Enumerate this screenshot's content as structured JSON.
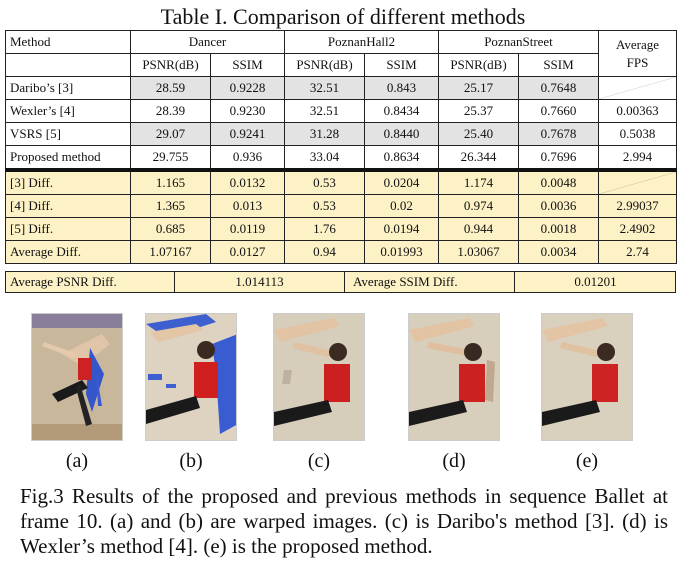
{
  "title": "Table I. Comparison of different methods",
  "table": {
    "method_header": "Method",
    "groups": [
      "Dancer",
      "PoznanHall2",
      "PoznanStreet"
    ],
    "avg_fps_header_1": "Average",
    "avg_fps_header_2": "FPS",
    "subheaders": [
      "PSNR(dB)",
      "SSIM",
      "PSNR(dB)",
      "SSIM",
      "PSNR(dB)",
      "SSIM"
    ],
    "rows": [
      {
        "label": "Daribo’s [3]",
        "values": [
          "28.59",
          "0.9228",
          "32.51",
          "0.843",
          "25.17",
          "0.7648"
        ],
        "fps": ""
      },
      {
        "label": "Wexler’s [4]",
        "values": [
          "28.39",
          "0.9230",
          "32.51",
          "0.8434",
          "25.37",
          "0.7660"
        ],
        "fps": "0.00363"
      },
      {
        "label": "VSRS [5]",
        "values": [
          "29.07",
          "0.9241",
          "31.28",
          "0.8440",
          "25.40",
          "0.7678"
        ],
        "fps": "0.5038"
      },
      {
        "label": "Proposed method",
        "values": [
          "29.755",
          "0.936",
          "33.04",
          "0.8634",
          "26.344",
          "0.7696"
        ],
        "fps": "2.994"
      },
      {
        "label": "[3] Diff.",
        "values": [
          "1.165",
          "0.0132",
          "0.53",
          "0.0204",
          "1.174",
          "0.0048"
        ],
        "fps": ""
      },
      {
        "label": "[4] Diff.",
        "values": [
          "1.365",
          "0.013",
          "0.53",
          "0.02",
          "0.974",
          "0.0036"
        ],
        "fps": "2.99037"
      },
      {
        "label": "[5] Diff.",
        "values": [
          "0.685",
          "0.0119",
          "1.76",
          "0.0194",
          "0.944",
          "0.0018"
        ],
        "fps": "2.4902"
      },
      {
        "label": "Average Diff.",
        "values": [
          "1.07167",
          "0.0127",
          "0.94",
          "0.01993",
          "1.03067",
          "0.0034"
        ],
        "fps": "2.74"
      }
    ],
    "avg_psnr_label": "Average PSNR Diff.",
    "avg_psnr_value": "1.014113",
    "avg_ssim_label": "Average SSIM Diff.",
    "avg_ssim_value": "0.01201"
  },
  "figure": {
    "panels": [
      "(a)",
      "(b)",
      "(c)",
      "(d)",
      "(e)"
    ],
    "caption": "Fig.3 Results of the proposed and previous methods in sequence Ballet at frame 10. (a) and (b) are warped images. (c) is Daribo's method [3]. (d) is Wexler’s method [4]. (e) is the proposed method."
  }
}
